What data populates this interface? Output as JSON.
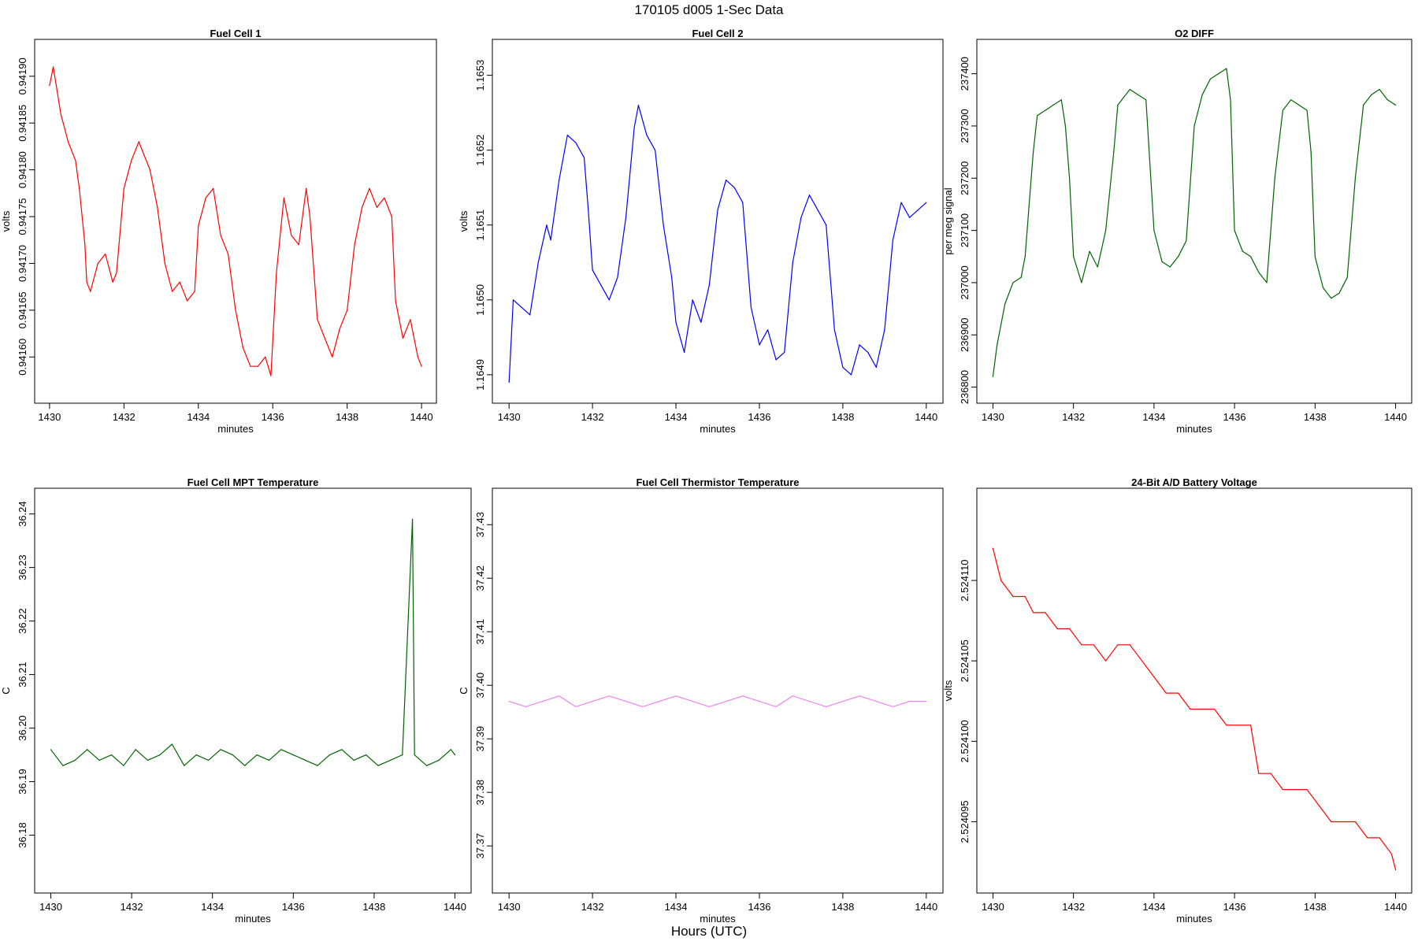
{
  "figure": {
    "title": "170105   d005   1-Sec Data",
    "footer_label": "Hours (UTC)"
  },
  "chart_data": [
    {
      "type": "line",
      "title": "Fuel Cell 1",
      "xlabel": "minutes",
      "ylabel": "volts",
      "color": "#ff0000",
      "xlim": [
        1430,
        1440
      ],
      "ylim": [
        0.941565,
        0.941925
      ],
      "xticks": [
        1430,
        1432,
        1434,
        1436,
        1438,
        1440
      ],
      "yticks": [
        0.9416,
        0.94165,
        0.9417,
        0.94175,
        0.9418,
        0.94185,
        0.9419
      ],
      "ytick_labels": [
        "0.94160",
        "0.94165",
        "0.94170",
        "0.94175",
        "0.94180",
        "0.94185",
        "0.94190"
      ],
      "series": [
        {
          "x": [
            1430,
            1430.1,
            1430.3,
            1430.5,
            1430.7,
            1430.8,
            1430.95,
            1431.0,
            1431.1,
            1431.3,
            1431.5,
            1431.7,
            1431.8,
            1432.0,
            1432.2,
            1432.4,
            1432.5,
            1432.7,
            1432.9,
            1433.1,
            1433.3,
            1433.5,
            1433.7,
            1433.9,
            1434.0,
            1434.2,
            1434.4,
            1434.6,
            1434.8,
            1435.0,
            1435.2,
            1435.4,
            1435.6,
            1435.8,
            1435.95,
            1436.1,
            1436.3,
            1436.5,
            1436.7,
            1436.9,
            1437.0,
            1437.2,
            1437.4,
            1437.6,
            1437.8,
            1438.0,
            1438.2,
            1438.4,
            1438.6,
            1438.8,
            1439.0,
            1439.2,
            1439.3,
            1439.5,
            1439.7,
            1439.9,
            1440.0
          ],
          "y": [
            0.94189,
            0.94191,
            0.94186,
            0.94183,
            0.94181,
            0.94178,
            0.94172,
            0.94168,
            0.94167,
            0.9417,
            0.94171,
            0.94168,
            0.94169,
            0.94178,
            0.94181,
            0.94183,
            0.94182,
            0.9418,
            0.94176,
            0.9417,
            0.94167,
            0.94168,
            0.94166,
            0.94167,
            0.94174,
            0.94177,
            0.94178,
            0.94173,
            0.94171,
            0.94165,
            0.94161,
            0.94159,
            0.94159,
            0.9416,
            0.94158,
            0.94169,
            0.94177,
            0.94173,
            0.94172,
            0.94178,
            0.94175,
            0.94164,
            0.94162,
            0.9416,
            0.94163,
            0.94165,
            0.94172,
            0.94176,
            0.94178,
            0.94176,
            0.94177,
            0.94175,
            0.94166,
            0.94162,
            0.94164,
            0.9416,
            0.94159
          ]
        }
      ]
    },
    {
      "type": "line",
      "title": "Fuel Cell 2",
      "xlabel": "minutes",
      "ylabel": "volts",
      "color": "#0000ff",
      "xlim": [
        1430,
        1440
      ],
      "ylim": [
        1.16488,
        1.16533
      ],
      "xticks": [
        1430,
        1432,
        1434,
        1436,
        1438,
        1440
      ],
      "yticks": [
        1.1649,
        1.165,
        1.1651,
        1.1652,
        1.1653
      ],
      "ytick_labels": [
        "1.1649",
        "1.1650",
        "1.1651",
        "1.1652",
        "1.1653"
      ],
      "series": [
        {
          "x": [
            1430,
            1430.1,
            1430.3,
            1430.5,
            1430.7,
            1430.9,
            1431.0,
            1431.2,
            1431.4,
            1431.6,
            1431.8,
            1431.9,
            1432.0,
            1432.2,
            1432.4,
            1432.6,
            1432.8,
            1433.0,
            1433.1,
            1433.3,
            1433.5,
            1433.7,
            1433.9,
            1434.0,
            1434.2,
            1434.4,
            1434.6,
            1434.8,
            1435.0,
            1435.2,
            1435.4,
            1435.6,
            1435.8,
            1436.0,
            1436.2,
            1436.4,
            1436.6,
            1436.8,
            1437.0,
            1437.2,
            1437.4,
            1437.6,
            1437.8,
            1438.0,
            1438.2,
            1438.4,
            1438.6,
            1438.8,
            1439.0,
            1439.2,
            1439.4,
            1439.6,
            1439.8,
            1440.0
          ],
          "y": [
            1.16489,
            1.165,
            1.16499,
            1.16498,
            1.16505,
            1.1651,
            1.16508,
            1.16516,
            1.16522,
            1.16521,
            1.16519,
            1.16512,
            1.16504,
            1.16502,
            1.165,
            1.16503,
            1.16511,
            1.16523,
            1.16526,
            1.16522,
            1.1652,
            1.1651,
            1.16503,
            1.16497,
            1.16493,
            1.165,
            1.16497,
            1.16502,
            1.16512,
            1.16516,
            1.16515,
            1.16513,
            1.16499,
            1.16494,
            1.16496,
            1.16492,
            1.16493,
            1.16505,
            1.16511,
            1.16514,
            1.16512,
            1.1651,
            1.16496,
            1.16491,
            1.1649,
            1.16494,
            1.16493,
            1.16491,
            1.16496,
            1.16508,
            1.16513,
            1.16511,
            1.16512,
            1.16513
          ]
        }
      ]
    },
    {
      "type": "line",
      "title": "O2 DIFF",
      "xlabel": "minutes",
      "ylabel": "per meg signal",
      "color": "#006400",
      "xlim": [
        1430,
        1440
      ],
      "ylim": [
        236795,
        237440
      ],
      "xticks": [
        1430,
        1432,
        1434,
        1436,
        1438,
        1440
      ],
      "yticks": [
        236800,
        236900,
        237000,
        237100,
        237200,
        237300,
        237400
      ],
      "ytick_labels": [
        "236800",
        "236900",
        "237000",
        "237100",
        "237200",
        "237300",
        "237400"
      ],
      "series": [
        {
          "x": [
            1430,
            1430.1,
            1430.3,
            1430.5,
            1430.7,
            1430.8,
            1430.9,
            1431.0,
            1431.1,
            1431.3,
            1431.5,
            1431.7,
            1431.8,
            1431.9,
            1432.0,
            1432.2,
            1432.4,
            1432.6,
            1432.8,
            1433.0,
            1433.1,
            1433.2,
            1433.4,
            1433.6,
            1433.8,
            1434.0,
            1434.2,
            1434.4,
            1434.6,
            1434.8,
            1435.0,
            1435.2,
            1435.4,
            1435.6,
            1435.8,
            1435.9,
            1436.0,
            1436.2,
            1436.4,
            1436.6,
            1436.8,
            1437.0,
            1437.2,
            1437.4,
            1437.6,
            1437.8,
            1437.9,
            1438.0,
            1438.2,
            1438.4,
            1438.6,
            1438.8,
            1439.0,
            1439.2,
            1439.4,
            1439.6,
            1439.8,
            1440.0
          ],
          "y": [
            236820,
            236880,
            236960,
            237000,
            237010,
            237050,
            237150,
            237250,
            237320,
            237330,
            237340,
            237350,
            237300,
            237200,
            237050,
            237000,
            237060,
            237030,
            237100,
            237250,
            237340,
            237350,
            237370,
            237360,
            237350,
            237100,
            237040,
            237030,
            237050,
            237080,
            237300,
            237360,
            237390,
            237400,
            237410,
            237350,
            237100,
            237060,
            237050,
            237020,
            237000,
            237200,
            237330,
            237350,
            237340,
            237330,
            237250,
            237050,
            236990,
            236970,
            236980,
            237010,
            237200,
            237340,
            237360,
            237370,
            237350,
            237340
          ]
        }
      ]
    },
    {
      "type": "line",
      "title": "Fuel Cell MPT Temperature",
      "xlabel": "minutes",
      "ylabel": "C",
      "color": "#006400",
      "xlim": [
        1430,
        1440
      ],
      "ylim": [
        36.172,
        36.242
      ],
      "xticks": [
        1430,
        1432,
        1434,
        1436,
        1438,
        1440
      ],
      "yticks": [
        36.18,
        36.19,
        36.2,
        36.21,
        36.22,
        36.23,
        36.24
      ],
      "ytick_labels": [
        "36.18",
        "36.19",
        "36.20",
        "36.21",
        "36.22",
        "36.23",
        "36.24"
      ],
      "series": [
        {
          "x": [
            1430,
            1430.3,
            1430.6,
            1430.9,
            1431.2,
            1431.5,
            1431.8,
            1432.1,
            1432.4,
            1432.7,
            1433.0,
            1433.3,
            1433.6,
            1433.9,
            1434.2,
            1434.5,
            1434.8,
            1435.1,
            1435.4,
            1435.7,
            1436.0,
            1436.3,
            1436.6,
            1436.9,
            1437.2,
            1437.5,
            1437.8,
            1438.1,
            1438.4,
            1438.7,
            1438.95,
            1439.0,
            1439.3,
            1439.6,
            1439.9,
            1440.0
          ],
          "y": [
            36.196,
            36.193,
            36.194,
            36.196,
            36.194,
            36.195,
            36.193,
            36.196,
            36.194,
            36.195,
            36.197,
            36.193,
            36.195,
            36.194,
            36.196,
            36.195,
            36.193,
            36.195,
            36.194,
            36.196,
            36.195,
            36.194,
            36.193,
            36.195,
            36.196,
            36.194,
            36.195,
            36.193,
            36.194,
            36.195,
            36.239,
            36.195,
            36.193,
            36.194,
            36.196,
            36.195
          ]
        }
      ]
    },
    {
      "type": "line",
      "title": "Fuel Cell Thermistor Temperature",
      "xlabel": "minutes",
      "ylabel": "C",
      "color": "#ee82ee",
      "xlim": [
        1430,
        1440
      ],
      "ylim": [
        37.364,
        37.434
      ],
      "xticks": [
        1430,
        1432,
        1434,
        1436,
        1438,
        1440
      ],
      "yticks": [
        37.37,
        37.38,
        37.39,
        37.4,
        37.41,
        37.42,
        37.43
      ],
      "ytick_labels": [
        "37.37",
        "37.38",
        "37.39",
        "37.40",
        "37.41",
        "37.42",
        "37.43"
      ],
      "series": [
        {
          "x": [
            1430,
            1430.4,
            1430.8,
            1431.2,
            1431.6,
            1432.0,
            1432.4,
            1432.8,
            1433.2,
            1433.6,
            1434.0,
            1434.4,
            1434.8,
            1435.2,
            1435.6,
            1436.0,
            1436.4,
            1436.8,
            1437.2,
            1437.6,
            1438.0,
            1438.4,
            1438.8,
            1439.2,
            1439.6,
            1440.0
          ],
          "y": [
            37.397,
            37.396,
            37.397,
            37.398,
            37.396,
            37.397,
            37.398,
            37.397,
            37.396,
            37.397,
            37.398,
            37.397,
            37.396,
            37.397,
            37.398,
            37.397,
            37.396,
            37.398,
            37.397,
            37.396,
            37.397,
            37.398,
            37.397,
            37.396,
            37.397,
            37.397
          ]
        }
      ]
    },
    {
      "type": "line",
      "title": "24-Bit A/D Battery Voltage",
      "xlabel": "minutes",
      "ylabel": "volts",
      "color": "#ff0000",
      "xlim": [
        1430,
        1440
      ],
      "ylim": [
        2.5240915,
        2.5241148
      ],
      "xticks": [
        1430,
        1432,
        1434,
        1436,
        1438,
        1440
      ],
      "yticks": [
        2.524095,
        2.5241,
        2.524105,
        2.52411
      ],
      "ytick_labels": [
        "2.524095",
        "2.524100",
        "2.524105",
        "2.524110"
      ],
      "series": [
        {
          "x": [
            1430,
            1430.2,
            1430.5,
            1430.8,
            1431.0,
            1431.3,
            1431.6,
            1431.9,
            1432.2,
            1432.5,
            1432.8,
            1433.1,
            1433.4,
            1433.7,
            1434.0,
            1434.3,
            1434.6,
            1434.9,
            1435.2,
            1435.5,
            1435.8,
            1436.1,
            1436.4,
            1436.6,
            1436.9,
            1437.2,
            1437.5,
            1437.8,
            1438.1,
            1438.4,
            1438.7,
            1439.0,
            1439.3,
            1439.6,
            1439.9,
            1440.0
          ],
          "y": [
            2.524112,
            2.52411,
            2.524109,
            2.524109,
            2.524108,
            2.524108,
            2.524107,
            2.524107,
            2.524106,
            2.524106,
            2.524105,
            2.524106,
            2.524106,
            2.524105,
            2.524104,
            2.524103,
            2.524103,
            2.524102,
            2.524102,
            2.524102,
            2.524101,
            2.524101,
            2.524101,
            2.524098,
            2.524098,
            2.524097,
            2.524097,
            2.524097,
            2.524096,
            2.524095,
            2.524095,
            2.524095,
            2.524094,
            2.524094,
            2.524093,
            2.524092
          ]
        }
      ]
    }
  ]
}
